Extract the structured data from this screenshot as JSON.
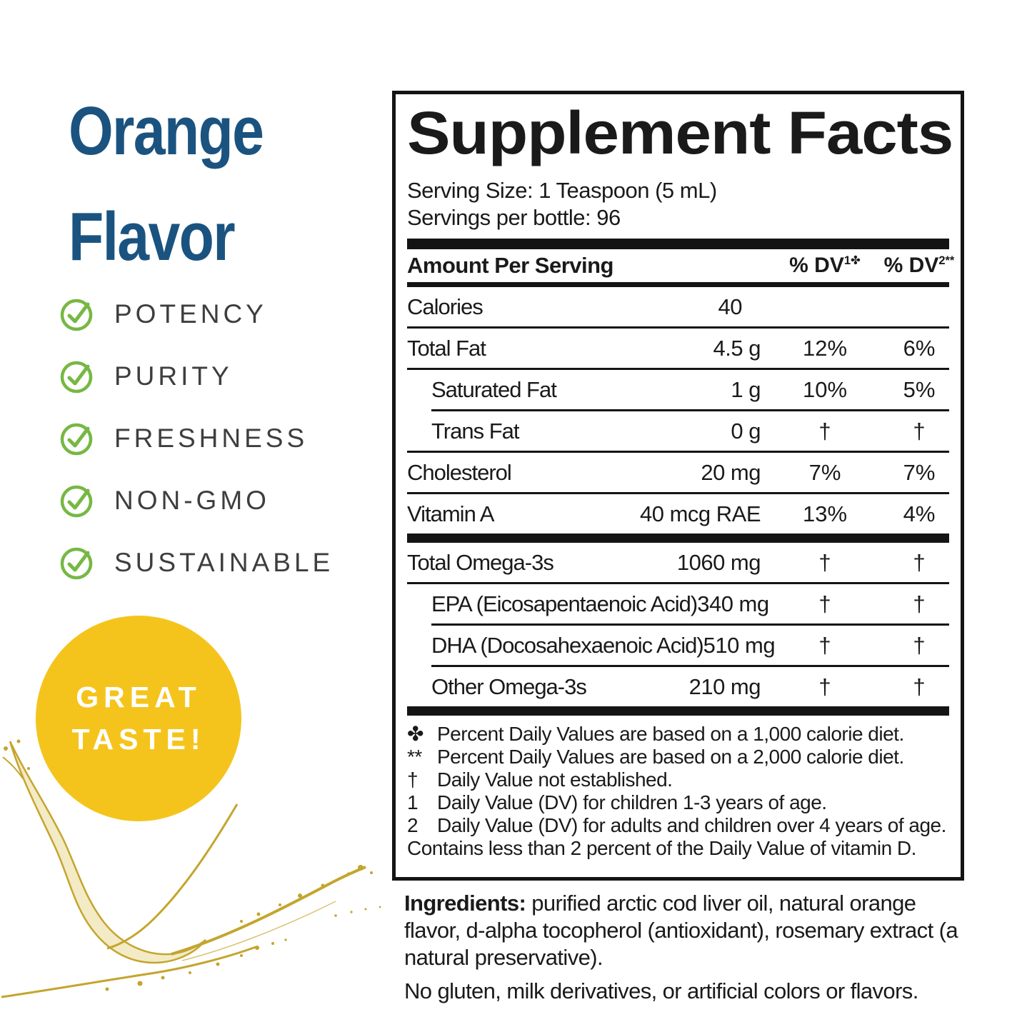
{
  "colors": {
    "title_blue": "#1B5380",
    "check_green": "#76B843",
    "badge_yellow": "#F5C41C",
    "panel_ink": "#141414",
    "text_gray": "#3E3E3E",
    "oil_gold": "#C4A52D",
    "oil_fill": "#F3EAC6"
  },
  "left_panel": {
    "title_line1": "Orange",
    "title_line2": "Flavor",
    "features": [
      "POTENCY",
      "PURITY",
      "FRESHNESS",
      "NON-GMO",
      "SUSTAINABLE"
    ],
    "badge": {
      "line1": "GREAT",
      "line2": "TASTE!"
    }
  },
  "supplement_panel": {
    "title": "Supplement Facts",
    "serving_size": "Serving Size: 1 Teaspoon (5 mL)",
    "servings_per_bottle": "Servings per bottle: 96",
    "header": {
      "amount_label": "Amount Per Serving",
      "dv_label": "% DV",
      "dv1_sup": "1",
      "dv1_symbol": "✤",
      "dv2_sup": "2",
      "dv2_symbol": "**"
    },
    "rows": [
      {
        "label": "Calories",
        "amount": "40",
        "dv1": "",
        "dv2": "",
        "indent": false,
        "sep": "none"
      },
      {
        "label": "Total Fat",
        "amount": "4.5 g",
        "dv1": "12%",
        "dv2": "6%",
        "indent": false,
        "sep": "line"
      },
      {
        "label": "Saturated Fat",
        "amount": "1 g",
        "dv1": "10%",
        "dv2": "5%",
        "indent": true,
        "sep": "line"
      },
      {
        "label": "Trans Fat",
        "amount": "0 g",
        "dv1": "†",
        "dv2": "†",
        "indent": true,
        "sep": "line-indent"
      },
      {
        "label": "Cholesterol",
        "amount": "20 mg",
        "dv1": "7%",
        "dv2": "7%",
        "indent": false,
        "sep": "line"
      },
      {
        "label": "Vitamin A",
        "amount": "40 mcg RAE",
        "dv1": "13%",
        "dv2": "4%",
        "indent": false,
        "sep": "line"
      },
      {
        "label": "Total Omega-3s",
        "amount": "1060 mg",
        "dv1": "†",
        "dv2": "†",
        "indent": false,
        "sep": "bar"
      },
      {
        "label": "EPA (Eicosapentaenoic Acid)",
        "amount": "340 mg",
        "dv1": "†",
        "dv2": "†",
        "indent": true,
        "sep": "line"
      },
      {
        "label": "DHA (Docosahexaenoic Acid)",
        "amount": "510 mg",
        "dv1": "†",
        "dv2": "†",
        "indent": true,
        "sep": "line-indent"
      },
      {
        "label": "Other Omega-3s",
        "amount": "210 mg",
        "dv1": "†",
        "dv2": "†",
        "indent": true,
        "sep": "line-indent"
      }
    ],
    "footnotes": [
      {
        "symbol": "✤",
        "text": "Percent Daily Values are based on a 1,000 calorie diet."
      },
      {
        "symbol": "**",
        "text": "Percent Daily Values are based on a 2,000 calorie diet."
      },
      {
        "symbol": "†",
        "text": "Daily Value not established."
      },
      {
        "symbol": "1",
        "text": "Daily Value (DV) for children 1-3 years of age."
      },
      {
        "symbol": "2",
        "text": "Daily Value (DV) for adults and children over 4 years of age."
      },
      {
        "symbol": "",
        "text": "Contains less than 2 percent of the Daily Value of vitamin D."
      }
    ]
  },
  "ingredients": {
    "label": "Ingredients:",
    "text": "purified arctic cod liver oil, natural orange flavor, d-alpha tocopherol (antioxidant), rosemary extract (a natural preservative).",
    "allergen_note": "No gluten, milk derivatives, or artificial colors or flavors."
  }
}
